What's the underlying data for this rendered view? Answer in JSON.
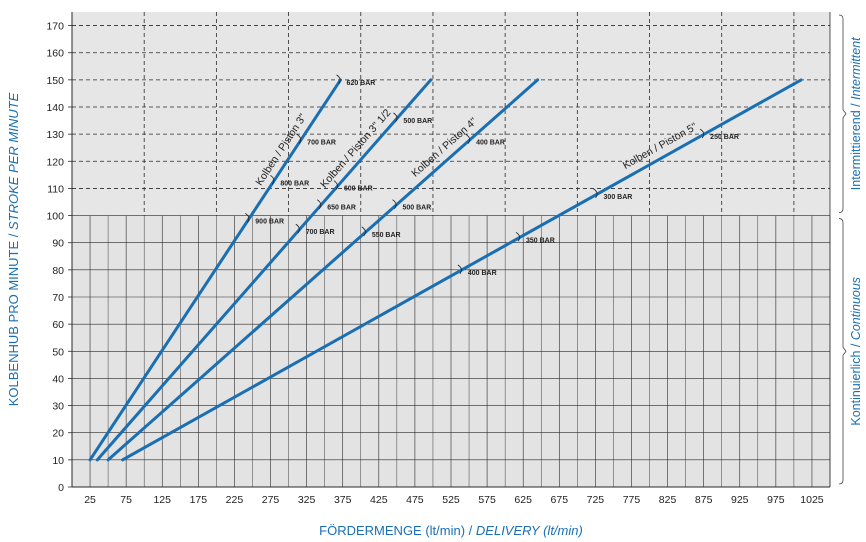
{
  "chart_data": {
    "type": "line",
    "xlabel": "FÖRDERMENGE (lt/min) / DELIVERY (lt/min)",
    "xlabel_parts": [
      "FÖRDERMENGE (lt/min) / ",
      "DELIVERY (lt/min)"
    ],
    "ylabel": "KOLBENHUB PRO MINUTE / STROKE PER MINUTE",
    "ylabel_parts": [
      "KOLBENHUB PRO MINUTE  / ",
      "STROKE PER MINUTE"
    ],
    "xlim": [
      0,
      1050
    ],
    "ylim": [
      0,
      175
    ],
    "x_ticks": [
      "25",
      "75",
      "125",
      "175",
      "225",
      "275",
      "325",
      "375",
      "425",
      "475",
      "525",
      "575",
      "625",
      "675",
      "725",
      "775",
      "825",
      "875",
      "925",
      "975",
      "1025"
    ],
    "y_ticks": [
      "0",
      "10",
      "20",
      "30",
      "40",
      "50",
      "60",
      "70",
      "80",
      "90",
      "100",
      "110",
      "120",
      "130",
      "140",
      "150",
      "160",
      "170"
    ],
    "grid": true,
    "zones": [
      {
        "label_parts": [
          "Intermittierend  / ",
          "Intermittent"
        ],
        "y_range": [
          100,
          175
        ]
      },
      {
        "label_parts": [
          "Kontinuierlich  / ",
          "Continuous"
        ],
        "y_range": [
          0,
          100
        ]
      }
    ],
    "series": [
      {
        "name": "Kolben / Piston 3\"",
        "x": [
          25,
          372
        ],
        "y": [
          10,
          150
        ]
      },
      {
        "name": "Kolben / Piston 3\" 1/2",
        "x": [
          35,
          497
        ],
        "y": [
          10,
          150
        ]
      },
      {
        "name": "Kolben / Piston 4\"",
        "x": [
          50,
          645
        ],
        "y": [
          10,
          150
        ]
      },
      {
        "name": "Kolben / Piston 5\"",
        "x": [
          70,
          1010
        ],
        "y": [
          10,
          150
        ]
      }
    ],
    "annotations": [
      {
        "series": 0,
        "y": 150,
        "text": "620 BAR"
      },
      {
        "series": 0,
        "y": 128,
        "text": "700 BAR"
      },
      {
        "series": 0,
        "y": 113,
        "text": "800 BAR"
      },
      {
        "series": 0,
        "y": 99,
        "text": "900 BAR"
      },
      {
        "series": 1,
        "y": 136,
        "text": "500 BAR"
      },
      {
        "series": 1,
        "y": 111,
        "text": "600 BAR"
      },
      {
        "series": 1,
        "y": 104,
        "text": "650 BAR"
      },
      {
        "series": 1,
        "y": 95,
        "text": "700 BAR"
      },
      {
        "series": 2,
        "y": 128,
        "text": "400 BAR"
      },
      {
        "series": 2,
        "y": 104,
        "text": "500 BAR"
      },
      {
        "series": 2,
        "y": 94,
        "text": "550 BAR"
      },
      {
        "series": 3,
        "y": 130,
        "text": "250 BAR"
      },
      {
        "series": 3,
        "y": 108,
        "text": "300 BAR"
      },
      {
        "series": 3,
        "y": 92,
        "text": "350 BAR"
      },
      {
        "series": 3,
        "y": 80,
        "text": "400 BAR"
      }
    ],
    "colors": {
      "line": "#1a6fb3",
      "upper_zone": "#e6e6e6",
      "lower_zone": "#e3e3e3",
      "grid": "#2a2a2a",
      "accent_text": "#1a6fb3"
    }
  }
}
